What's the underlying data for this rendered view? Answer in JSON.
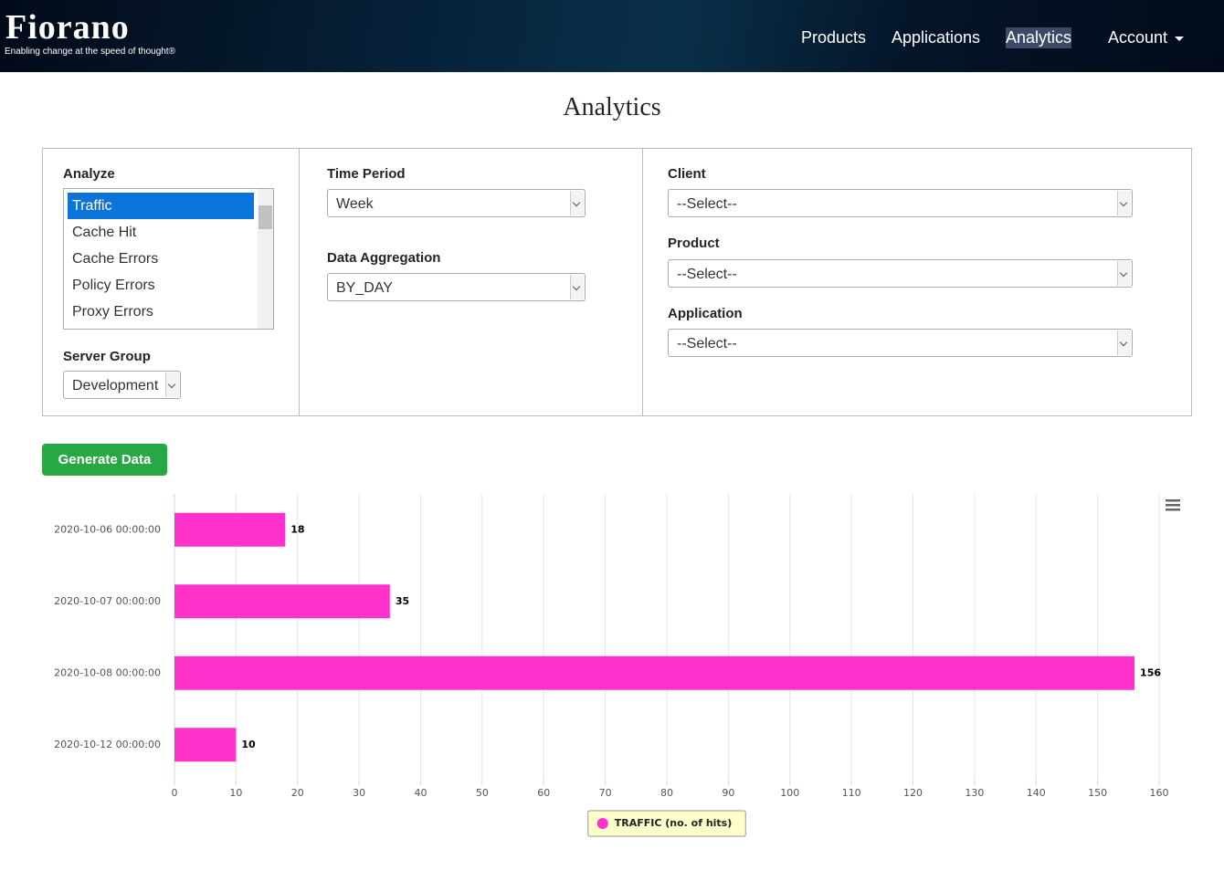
{
  "header": {
    "logo": "Fiorano",
    "tagline": "Enabling change at the speed of thought®",
    "nav": [
      "Products",
      "Applications",
      "Analytics",
      "Account"
    ]
  },
  "page_title": "Analytics",
  "form": {
    "analyze": {
      "label": "Analyze",
      "options": [
        "Traffic",
        "Cache Hit",
        "Cache Errors",
        "Policy Errors",
        "Proxy Errors"
      ]
    },
    "server_group": {
      "label": "Server Group",
      "value": "Development"
    },
    "time_period": {
      "label": "Time Period",
      "value": "Week"
    },
    "data_aggregation": {
      "label": "Data Aggregation",
      "value": "BY_DAY"
    },
    "client": {
      "label": "Client",
      "value": "--Select--"
    },
    "product": {
      "label": "Product",
      "value": "--Select--"
    },
    "application": {
      "label": "Application",
      "value": "--Select--"
    }
  },
  "button": "Generate Data",
  "chart_data": {
    "type": "bar",
    "horizontal": true,
    "categories": [
      "2020-10-06 00:00:00",
      "2020-10-07 00:00:00",
      "2020-10-08 00:00:00",
      "2020-10-12 00:00:00"
    ],
    "series": [
      {
        "name": "TRAFFIC (no. of hits)",
        "color": "#ff33cc",
        "values": [
          18,
          35,
          156,
          10
        ]
      }
    ],
    "xlim": [
      0,
      160
    ],
    "xticks": [
      0,
      10,
      20,
      30,
      40,
      50,
      60,
      70,
      80,
      90,
      100,
      110,
      120,
      130,
      140,
      150,
      160
    ],
    "grid": true,
    "legend": "bottom"
  }
}
